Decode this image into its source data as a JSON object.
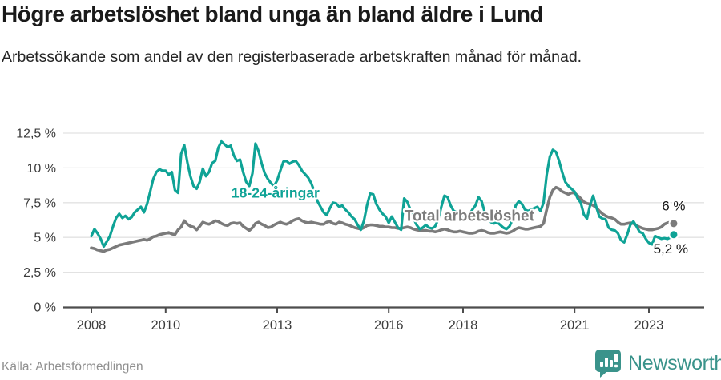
{
  "header": {
    "title": "Högre arbetslöshet bland unga än bland äldre i Lund",
    "subtitle": "Arbetssökande som andel av den registerbaserade arbetskraften månad för månad."
  },
  "footer": {
    "source": "Källa: Arbetsförmedlingen",
    "brand": "Newsworthy"
  },
  "colors": {
    "youth": "#0FA396",
    "total": "#7B7B7B",
    "total_label": "#7D7D7D",
    "grid": "#E2E2E2",
    "axis": "#4D4D4D",
    "tick_text": "#3C3C3C",
    "end_label_text": "#141414",
    "brand_teal": "#3A938B"
  },
  "chart_data": {
    "type": "line",
    "title": "Högre arbetslöshet bland unga än bland äldre i Lund",
    "subtitle": "Arbetssökande som andel av den registerbaserade arbetskraften månad för månad.",
    "x_unit": "months",
    "x_start_year": 2008.0,
    "x_end_year": 2023.667,
    "x_ticks": [
      2008,
      2010,
      2013,
      2016,
      2018,
      2021,
      2023
    ],
    "x_tick_labels": [
      "2008",
      "2010",
      "2013",
      "2016",
      "2018",
      "2021",
      "2023"
    ],
    "y_ticks": [
      0,
      2.5,
      5,
      7.5,
      10,
      12.5
    ],
    "y_tick_labels": [
      "0 %",
      "2,5 %",
      "5 %",
      "7,5 %",
      "10 %",
      "12,5 %"
    ],
    "ylim": [
      0,
      13.4
    ],
    "grid": true,
    "legend_position": "inline-labels",
    "series": [
      {
        "name": "Total arbetslöshet",
        "color": "#7B7B7B",
        "width": 3.6,
        "dash_from_index": null,
        "end_dot": true,
        "end_value_label": "6 %",
        "values": [
          4.25,
          4.2,
          4.1,
          4.05,
          4.0,
          4.1,
          4.15,
          4.25,
          4.35,
          4.45,
          4.5,
          4.55,
          4.6,
          4.65,
          4.7,
          4.75,
          4.8,
          4.85,
          4.8,
          4.9,
          5.05,
          5.1,
          5.2,
          5.25,
          5.3,
          5.35,
          5.25,
          5.2,
          5.55,
          5.75,
          6.2,
          5.95,
          5.8,
          5.75,
          5.55,
          5.8,
          6.1,
          6.0,
          5.95,
          6.05,
          6.2,
          6.15,
          6.0,
          5.9,
          5.85,
          6.0,
          6.05,
          6.0,
          6.05,
          5.8,
          5.65,
          5.5,
          5.7,
          6.0,
          6.1,
          5.95,
          5.85,
          5.7,
          5.75,
          5.9,
          6.0,
          6.1,
          6.0,
          5.95,
          6.05,
          6.2,
          6.3,
          6.35,
          6.2,
          6.1,
          6.05,
          6.1,
          6.05,
          6.0,
          5.95,
          5.95,
          6.1,
          6.15,
          6.0,
          5.95,
          6.1,
          6.05,
          5.95,
          5.9,
          5.8,
          5.7,
          5.65,
          5.6,
          5.7,
          5.85,
          5.9,
          5.9,
          5.85,
          5.8,
          5.8,
          5.75,
          5.75,
          5.7,
          5.7,
          5.65,
          5.65,
          5.7,
          5.75,
          5.7,
          5.6,
          5.55,
          5.5,
          5.5,
          5.5,
          5.45,
          5.45,
          5.4,
          5.45,
          5.55,
          5.6,
          5.55,
          5.45,
          5.4,
          5.4,
          5.45,
          5.4,
          5.35,
          5.3,
          5.3,
          5.35,
          5.45,
          5.5,
          5.45,
          5.35,
          5.3,
          5.3,
          5.35,
          5.4,
          5.35,
          5.3,
          5.35,
          5.45,
          5.6,
          5.7,
          5.65,
          5.6,
          5.6,
          5.65,
          5.7,
          5.75,
          5.8,
          6.0,
          7.0,
          7.9,
          8.4,
          8.6,
          8.5,
          8.3,
          8.2,
          8.1,
          8.2,
          8.2,
          8.0,
          7.8,
          7.55,
          7.45,
          7.4,
          7.3,
          7.15,
          6.9,
          6.7,
          6.55,
          6.45,
          6.4,
          6.3,
          6.1,
          5.95,
          5.95,
          6.0,
          6.05,
          6.0,
          5.85,
          5.75,
          5.65,
          5.6,
          5.55,
          5.55,
          5.6,
          5.65,
          5.75,
          5.95,
          6.05,
          6.1,
          6.0
        ]
      },
      {
        "name": "18-24-åringar",
        "color": "#0FA396",
        "width": 3.2,
        "dash_from_index": 185,
        "end_dot": true,
        "end_value_label": "5,2 %",
        "values": [
          5.1,
          5.6,
          5.3,
          4.9,
          4.35,
          4.7,
          5.1,
          5.8,
          6.4,
          6.7,
          6.4,
          6.55,
          6.3,
          6.45,
          6.8,
          7.0,
          7.2,
          6.8,
          7.4,
          8.3,
          9.2,
          9.7,
          9.9,
          9.8,
          9.8,
          9.5,
          9.7,
          8.4,
          8.2,
          11.0,
          11.65,
          10.4,
          9.4,
          8.7,
          8.5,
          9.0,
          9.95,
          9.4,
          9.7,
          10.35,
          10.5,
          11.45,
          11.9,
          11.7,
          11.5,
          11.6,
          10.9,
          10.5,
          10.6,
          9.7,
          9.0,
          8.7,
          9.6,
          11.75,
          11.2,
          10.3,
          9.6,
          9.2,
          8.9,
          8.7,
          9.1,
          9.8,
          10.45,
          10.5,
          10.3,
          10.45,
          10.5,
          10.2,
          9.8,
          9.55,
          9.3,
          8.9,
          8.3,
          7.6,
          7.2,
          6.8,
          6.6,
          7.1,
          7.5,
          7.45,
          7.2,
          7.3,
          7.0,
          6.8,
          6.5,
          6.3,
          5.9,
          5.55,
          6.2,
          7.3,
          8.15,
          8.1,
          7.4,
          7.0,
          6.7,
          6.5,
          6.05,
          6.5,
          6.1,
          5.7,
          5.55,
          7.8,
          7.55,
          7.0,
          6.4,
          5.9,
          5.6,
          5.7,
          5.9,
          5.7,
          5.65,
          5.8,
          6.3,
          7.2,
          8.0,
          7.9,
          7.3,
          6.9,
          6.8,
          6.6,
          6.5,
          6.4,
          6.6,
          7.0,
          7.3,
          7.9,
          7.6,
          6.8,
          6.4,
          6.1,
          6.0,
          6.1,
          5.9,
          5.7,
          5.6,
          5.8,
          6.3,
          7.3,
          7.6,
          7.4,
          7.0,
          6.9,
          7.0,
          7.1,
          7.2,
          6.9,
          7.5,
          9.5,
          10.8,
          11.3,
          11.15,
          10.5,
          9.7,
          9.0,
          8.7,
          8.5,
          8.3,
          7.8,
          7.5,
          6.65,
          6.35,
          7.3,
          8.0,
          7.2,
          6.5,
          6.35,
          6.3,
          5.7,
          5.55,
          5.5,
          5.3,
          4.8,
          4.65,
          5.2,
          5.9,
          6.15,
          5.8,
          5.4,
          5.3,
          4.9,
          4.6,
          4.5,
          5.1,
          5.0,
          4.9,
          4.95,
          4.9,
          5.0,
          5.2
        ]
      }
    ],
    "annotations": [
      {
        "id": "youth-series-label",
        "text": "18-24-åringar",
        "year": 2011.77,
        "pct": 7.85,
        "color": "#0FA396",
        "size": 17.5,
        "bold": true
      },
      {
        "id": "total-series-label",
        "text": "Total arbetslöshet",
        "year": 2016.42,
        "pct": 6.2,
        "color": "#7D7D7D",
        "size": 19,
        "bold": true
      },
      {
        "id": "total-end-label",
        "text": "6 %",
        "year": 2023.35,
        "pct": 6.95,
        "color": "#141414",
        "size": 17,
        "bold": false
      },
      {
        "id": "youth-end-label",
        "text": "5,2 %",
        "year": 2023.12,
        "pct": 3.85,
        "color": "#141414",
        "size": 17,
        "bold": false
      }
    ]
  }
}
